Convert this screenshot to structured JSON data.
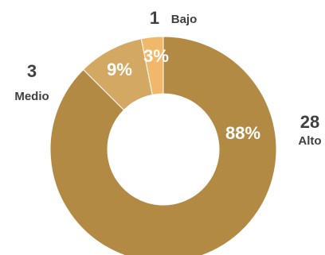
{
  "chart_data": {
    "type": "pie",
    "variant": "donut",
    "title": "",
    "slices": [
      {
        "category": "Alto",
        "count": "28",
        "percent_label": "88%",
        "value": 28,
        "color": "#B38A43"
      },
      {
        "category": "Medio",
        "count": "3",
        "percent_label": "9%",
        "value": 3,
        "color": "#D3A862"
      },
      {
        "category": "Bajo",
        "count": "1",
        "percent_label": "3%",
        "value": 1,
        "color": "#F2B86A"
      }
    ],
    "legend": "none"
  }
}
